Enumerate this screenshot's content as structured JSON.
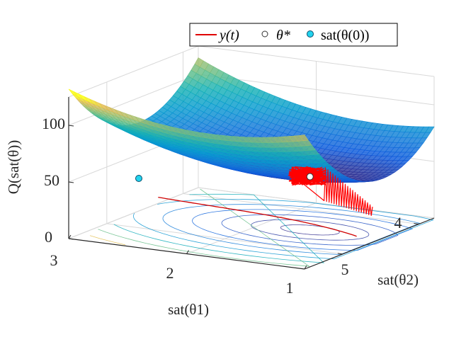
{
  "chart_data": {
    "type": "surface",
    "title": "",
    "zlabel": "Q(sat(θ))",
    "xlabel": "sat(θ1)",
    "ylabel": "sat(θ2)",
    "x_ticks": [
      {
        "value": 3,
        "label": "3"
      },
      {
        "value": 2,
        "label": "2"
      },
      {
        "value": 1,
        "label": "1"
      }
    ],
    "y_ticks": [
      {
        "value": 4,
        "label": "4"
      },
      {
        "value": 5,
        "label": "5"
      }
    ],
    "z_ticks": [
      {
        "value": 0,
        "label": "0"
      },
      {
        "value": 50,
        "label": "50"
      },
      {
        "value": 100,
        "label": "100"
      }
    ],
    "xlim": [
      0.6,
      3.0
    ],
    "ylim": [
      3.5,
      5.2
    ],
    "zlim": [
      0,
      125
    ],
    "grid": true,
    "legend_position": "top-right",
    "colormap": "parula",
    "legend": [
      {
        "label": "y(t)",
        "marker": "line",
        "color": "#e00000"
      },
      {
        "label": "θ*",
        "marker": "circle",
        "color": "#ffffff"
      },
      {
        "label": "sat(θ(0))",
        "marker": "circle",
        "color": "#22d3ee"
      }
    ],
    "optimum": {
      "x": 1.6,
      "y": 4.5,
      "z": 47
    },
    "initial_point": {
      "x": 2.5,
      "y": 3.9,
      "z": 52
    },
    "surface_samples": [
      {
        "x": 3.0,
        "y": 3.5,
        "z": 107
      },
      {
        "x": 1.6,
        "y": 4.5,
        "z": 47
      },
      {
        "x": 0.6,
        "y": 3.5,
        "z": 112
      },
      {
        "x": 3.0,
        "y": 5.2,
        "z": 120
      }
    ]
  }
}
